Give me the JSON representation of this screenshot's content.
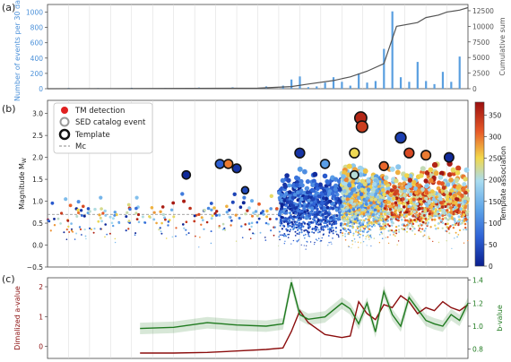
{
  "chart_data": [
    {
      "panel": "(a)",
      "type": "bar",
      "ylabel": "Number of events per 30 days",
      "y2label": "Cumulative sum",
      "ylim": [
        0,
        1100
      ],
      "y2lim": [
        0,
        13500
      ],
      "yticks": [
        "0",
        "200",
        "400",
        "600",
        "800",
        "1000"
      ],
      "y2ticks": [
        "0",
        "2500",
        "5000",
        "7500",
        "10000",
        "12500"
      ],
      "x": [
        0.05,
        0.12,
        0.2,
        0.28,
        0.36,
        0.44,
        0.52,
        0.56,
        0.58,
        0.6,
        0.62,
        0.64,
        0.66,
        0.68,
        0.7,
        0.72,
        0.74,
        0.76,
        0.78,
        0.8,
        0.82,
        0.84,
        0.86,
        0.88,
        0.9,
        0.92,
        0.94,
        0.96,
        0.98
      ],
      "values": [
        10,
        8,
        12,
        10,
        15,
        18,
        30,
        40,
        120,
        160,
        20,
        30,
        80,
        150,
        90,
        40,
        200,
        80,
        100,
        520,
        1010,
        150,
        90,
        350,
        100,
        60,
        220,
        90,
        420
      ],
      "cumulative_x": [
        0,
        0.5,
        0.58,
        0.62,
        0.68,
        0.72,
        0.76,
        0.8,
        0.82,
        0.83,
        0.88,
        0.9,
        0.93,
        0.95,
        0.98,
        1.0
      ],
      "cumulative_y": [
        0,
        80,
        350,
        750,
        1300,
        1900,
        2800,
        4000,
        8000,
        10000,
        10600,
        11400,
        11800,
        12300,
        12600,
        13000
      ],
      "line_color": "#555555",
      "bar_color": "#5a9fe0",
      "label_color": "#4a90d9"
    },
    {
      "panel": "(b)",
      "type": "scatter",
      "ylabel_main": "Magnitude M",
      "ylabel_sub": "W",
      "ylim": [
        -0.5,
        3.3
      ],
      "yticks": [
        "−0.5",
        "0.0",
        "0.5",
        "1.0",
        "1.5",
        "2.0",
        "2.5",
        "3.0"
      ],
      "mc": 0.7,
      "legend": [
        "TM detection",
        "SED catalog event",
        "Template",
        "Mc"
      ],
      "colorbar_label": "Template association",
      "colorbar_ticks": [
        "0",
        "50",
        "100",
        "150",
        "200",
        "250",
        "300",
        "350"
      ],
      "colormap": [
        "#0a1f8f",
        "#2f63d6",
        "#5fa5e8",
        "#a9dcf0",
        "#f2d84a",
        "#e85a28",
        "#9b0f0f"
      ],
      "cbar_max": 380,
      "seed": 7,
      "highlight_points": [
        {
          "x": 0.41,
          "y": 1.85,
          "tmpl": 60
        },
        {
          "x": 0.43,
          "y": 1.85,
          "tmpl": 300
        },
        {
          "x": 0.45,
          "y": 1.75,
          "tmpl": 20
        },
        {
          "x": 0.33,
          "y": 1.6,
          "tmpl": 10
        },
        {
          "x": 0.6,
          "y": 2.1,
          "tmpl": 20
        },
        {
          "x": 0.66,
          "y": 1.85,
          "tmpl": 120
        },
        {
          "x": 0.745,
          "y": 2.9,
          "tmpl": 360
        },
        {
          "x": 0.748,
          "y": 2.7,
          "tmpl": 340
        },
        {
          "x": 0.73,
          "y": 2.1,
          "tmpl": 250
        },
        {
          "x": 0.73,
          "y": 1.6,
          "tmpl": 200
        },
        {
          "x": 0.84,
          "y": 2.45,
          "tmpl": 30
        },
        {
          "x": 0.86,
          "y": 2.1,
          "tmpl": 330
        },
        {
          "x": 0.9,
          "y": 2.05,
          "tmpl": 300
        },
        {
          "x": 0.955,
          "y": 2.0,
          "tmpl": 10
        },
        {
          "x": 0.47,
          "y": 1.25,
          "tmpl": 40
        },
        {
          "x": 0.8,
          "y": 1.8,
          "tmpl": 310
        }
      ]
    },
    {
      "panel": "(c)",
      "type": "line",
      "ylabel": "Dimalized a-value",
      "y2label": "b-value",
      "ylim": [
        -0.4,
        2.3
      ],
      "y2lim": [
        0.72,
        1.42
      ],
      "yticks": [
        "0",
        "1",
        "2"
      ],
      "y2ticks": [
        "0.8",
        "1.0",
        "1.2",
        "1.4"
      ],
      "a_color": "#8b0d0d",
      "b_color": "#1f7a1f",
      "a_x": [
        0.22,
        0.3,
        0.38,
        0.45,
        0.52,
        0.56,
        0.58,
        0.6,
        0.62,
        0.66,
        0.7,
        0.72,
        0.74,
        0.76,
        0.78,
        0.8,
        0.82,
        0.84,
        0.86,
        0.88,
        0.9,
        0.92,
        0.94,
        0.96,
        0.98,
        1.0
      ],
      "a_y": [
        -0.22,
        -0.22,
        -0.2,
        -0.15,
        -0.1,
        -0.05,
        0.5,
        1.2,
        0.8,
        0.4,
        0.3,
        0.35,
        1.5,
        1.1,
        0.9,
        1.4,
        1.3,
        1.7,
        1.5,
        1.1,
        1.3,
        1.2,
        1.5,
        1.3,
        1.2,
        1.4
      ],
      "b_x": [
        0.22,
        0.3,
        0.38,
        0.45,
        0.52,
        0.56,
        0.58,
        0.6,
        0.62,
        0.66,
        0.7,
        0.72,
        0.74,
        0.76,
        0.78,
        0.8,
        0.82,
        0.84,
        0.86,
        0.88,
        0.9,
        0.92,
        0.94,
        0.96,
        0.98,
        1.0
      ],
      "b_y": [
        0.98,
        0.99,
        1.03,
        1.01,
        1.0,
        1.02,
        1.38,
        1.1,
        1.06,
        1.08,
        1.2,
        1.15,
        1.02,
        1.2,
        0.95,
        1.3,
        1.1,
        1.0,
        1.25,
        1.15,
        1.05,
        1.02,
        1.0,
        1.1,
        1.05,
        1.2
      ]
    }
  ]
}
